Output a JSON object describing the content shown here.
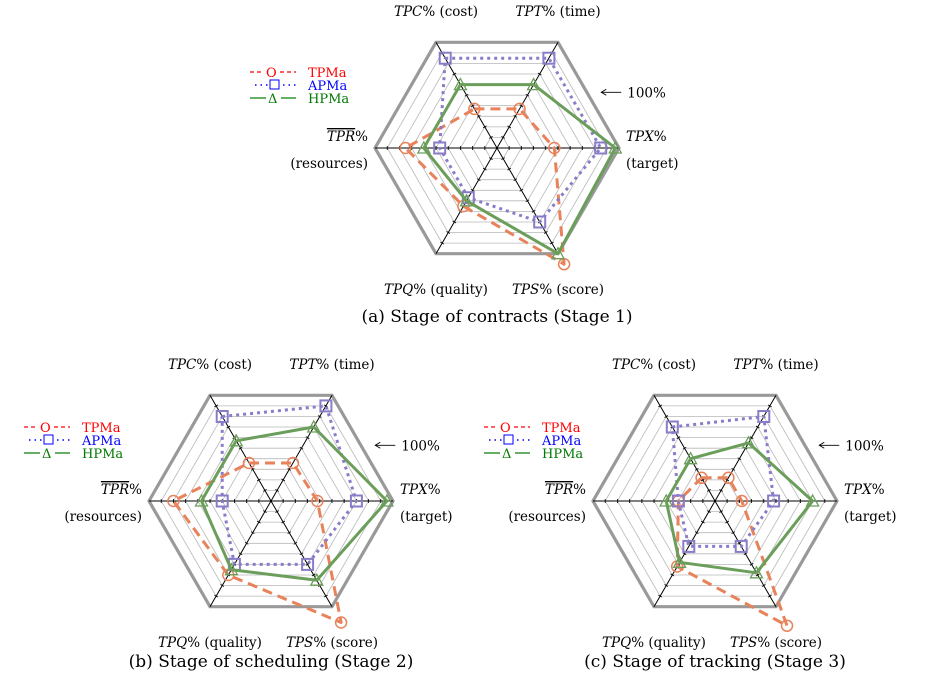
{
  "chart_data": [
    {
      "type": "radar",
      "caption": "(a) Stage of contracts (Stage 1)",
      "axes": [
        {
          "var": "TPC",
          "suffix": "% (cost)"
        },
        {
          "var": "TPT",
          "suffix": "% (time)"
        },
        {
          "var": "TPX",
          "suffix": "%",
          "sub": "(target)"
        },
        {
          "var": "TPS",
          "suffix": "% (score)"
        },
        {
          "var": "TPQ",
          "suffix": "% (quality)"
        },
        {
          "var": "TPR",
          "suffix": "%",
          "sub": "(resources)",
          "overline": true
        }
      ],
      "reference_label": "100%",
      "rmax": 100,
      "rings": 10,
      "series": [
        {
          "name": "TPMa",
          "marker": "O",
          "color": "#e8825a",
          "legend_color": "#ff0000",
          "dash": "10,6",
          "values": [
            37,
            37,
            47,
            110,
            55,
            75
          ]
        },
        {
          "name": "APMa",
          "marker": "□",
          "color": "#8a7cc8",
          "legend_color": "#0000ff",
          "dash": "3,4",
          "values": [
            85,
            85,
            85,
            70,
            47,
            47
          ]
        },
        {
          "name": "HPMa",
          "marker": "Δ",
          "color": "#6a9e5a",
          "legend_color": "#007a00",
          "dash": "",
          "values": [
            60,
            60,
            97,
            100,
            50,
            60
          ]
        }
      ]
    },
    {
      "type": "radar",
      "caption": "(b) Stage of scheduling (Stage 2)",
      "axes": [
        {
          "var": "TPC",
          "suffix": "% (cost)"
        },
        {
          "var": "TPT",
          "suffix": "% (time)"
        },
        {
          "var": "TPX",
          "suffix": "%",
          "sub": "(target)"
        },
        {
          "var": "TPS",
          "suffix": "% (score)"
        },
        {
          "var": "TPQ",
          "suffix": "% (quality)"
        },
        {
          "var": "TPR",
          "suffix": "%",
          "sub": "(resources)",
          "overline": true
        }
      ],
      "reference_label": "100%",
      "rmax": 100,
      "rings": 10,
      "series": [
        {
          "name": "TPMa",
          "marker": "O",
          "color": "#e8825a",
          "legend_color": "#ff0000",
          "dash": "10,6",
          "values": [
            36,
            36,
            38,
            115,
            70,
            80
          ]
        },
        {
          "name": "APMa",
          "marker": "□",
          "color": "#8a7cc8",
          "legend_color": "#0000ff",
          "dash": "3,4",
          "values": [
            80,
            90,
            70,
            60,
            60,
            40
          ]
        },
        {
          "name": "HPMa",
          "marker": "Δ",
          "color": "#6a9e5a",
          "legend_color": "#007a00",
          "dash": "",
          "values": [
            57,
            70,
            95,
            75,
            65,
            57
          ]
        }
      ]
    },
    {
      "type": "radar",
      "caption": "(c) Stage of tracking (Stage 3)",
      "axes": [
        {
          "var": "TPC",
          "suffix": "% (cost)"
        },
        {
          "var": "TPT",
          "suffix": "% (time)"
        },
        {
          "var": "TPX",
          "suffix": "%",
          "sub": "(target)"
        },
        {
          "var": "TPS",
          "suffix": "% (score)"
        },
        {
          "var": "TPQ",
          "suffix": "% (quality)"
        },
        {
          "var": "TPR",
          "suffix": "%",
          "sub": "(resources)",
          "overline": true
        }
      ],
      "reference_label": "100%",
      "rmax": 100,
      "rings": 10,
      "series": [
        {
          "name": "TPMa",
          "marker": "O",
          "color": "#e8825a",
          "legend_color": "#ff0000",
          "dash": "10,6",
          "values": [
            22,
            22,
            22,
            118,
            62,
            30
          ]
        },
        {
          "name": "APMa",
          "marker": "□",
          "color": "#8a7cc8",
          "legend_color": "#0000ff",
          "dash": "3,4",
          "values": [
            70,
            80,
            48,
            43,
            43,
            30
          ]
        },
        {
          "name": "HPMa",
          "marker": "Δ",
          "color": "#6a9e5a",
          "legend_color": "#007a00",
          "dash": "",
          "values": [
            40,
            55,
            80,
            68,
            58,
            40
          ]
        }
      ]
    }
  ]
}
